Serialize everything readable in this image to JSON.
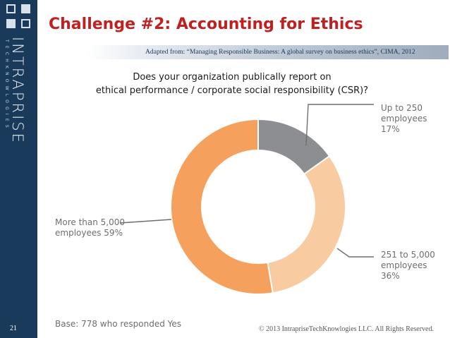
{
  "slide": {
    "title": "Challenge #2: Accounting for Ethics",
    "source": "Adapted from: “Managing Responsible Business: A global survey on business ethics”, CIMA, 2012",
    "page_number": "21",
    "copyright": "© 2013 IntrapriseTechKnowlogies LLC. All Rights Reserved."
  },
  "sidebar": {
    "brand": "INTRAPRISE",
    "tagline": "TECHKNOWLOGIES",
    "background_color": "#1a3a5c"
  },
  "colors": {
    "title": "#c02020",
    "slice_small": "#8c8e92",
    "slice_medium": "#f9cba0",
    "slice_large": "#f5a05c"
  },
  "chart_data": {
    "type": "pie",
    "style": "donut",
    "title_lines": [
      "Does your organization publically report on",
      "ethical performance / corporate social responsibility (CSR)?"
    ],
    "series": [
      {
        "name": "Up to 250 employees",
        "value": 17,
        "label_lines": [
          "Up to 250",
          "employees",
          "17%"
        ],
        "color": "#8c8e92"
      },
      {
        "name": "251 to 5,000 employees",
        "value": 36,
        "label_lines": [
          "251 to 5,000",
          "employees",
          "36%"
        ],
        "color": "#f9cba0"
      },
      {
        "name": "More than 5,000 employees",
        "value": 59,
        "label_lines": [
          "More than 5,000",
          "employees 59%"
        ],
        "color": "#f5a05c"
      }
    ],
    "base_note": "Base: 778 who responded Yes"
  }
}
